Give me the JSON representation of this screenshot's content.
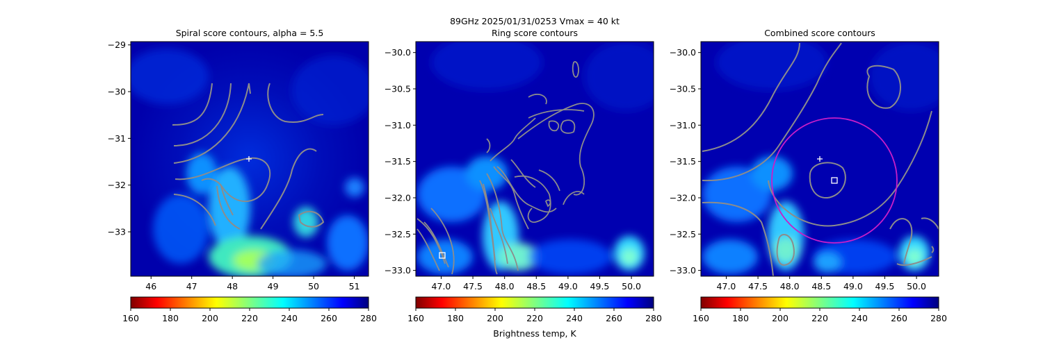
{
  "figure": {
    "suptitle_line1": "89GHz  2025/01/31/0253    Vmax = 40 kt",
    "colorbar_label": "Brightness temp, K",
    "colormap": "jet_reversed",
    "colors": {
      "contour": "#8c8c8c",
      "circle": "#c81ec8",
      "marker": "#ffffff"
    }
  },
  "chart_data": [
    {
      "type": "heatmap",
      "title": "Spiral score contours, alpha =  5.5",
      "xlim": [
        45.5,
        51.35
      ],
      "ylim": [
        -33.95,
        -28.93
      ],
      "xticks": [
        46,
        47,
        48,
        49,
        50,
        51
      ],
      "yticks": [
        -29,
        -30,
        -31,
        -32,
        -33
      ],
      "center_marker": {
        "symbol": "plus",
        "x": 48.4,
        "y": -31.48
      },
      "colorbar": {
        "min": 160,
        "max": 280,
        "ticks": [
          160,
          180,
          200,
          220,
          240,
          260,
          280
        ]
      },
      "contour_color": "gray"
    },
    {
      "type": "heatmap",
      "title": "Ring score contours",
      "xlim": [
        46.6,
        50.35
      ],
      "ylim": [
        -33.08,
        -29.85
      ],
      "xticks": [
        47.0,
        47.5,
        48.0,
        48.5,
        49.0,
        49.5,
        50.0
      ],
      "yticks": [
        -30.0,
        -30.5,
        -31.0,
        -31.5,
        -32.0,
        -32.5,
        -33.0
      ],
      "square_marker": {
        "symbol": "square",
        "x": 46.97,
        "y": -32.82
      },
      "colorbar": {
        "min": 160,
        "max": 280,
        "ticks": [
          160,
          180,
          200,
          220,
          240,
          260,
          280
        ]
      },
      "contour_color": "gray"
    },
    {
      "type": "heatmap",
      "title": "Combined score contours",
      "xlim": [
        46.6,
        50.35
      ],
      "ylim": [
        -33.08,
        -29.85
      ],
      "xticks": [
        47.0,
        47.5,
        48.0,
        48.5,
        49.0,
        49.5,
        50.0
      ],
      "yticks": [
        -30.0,
        -30.5,
        -31.0,
        -31.5,
        -32.0,
        -32.5,
        -33.0
      ],
      "center_marker": {
        "symbol": "plus",
        "x": 48.45,
        "y": -31.46
      },
      "square_marker": {
        "symbol": "square",
        "x": 48.67,
        "y": -31.76
      },
      "ring_circle": {
        "cx": 48.67,
        "cy": -31.76,
        "r": 0.82
      },
      "colorbar": {
        "min": 160,
        "max": 280,
        "ticks": [
          160,
          180,
          200,
          220,
          240,
          260,
          280
        ]
      },
      "contour_color": "gray"
    }
  ]
}
